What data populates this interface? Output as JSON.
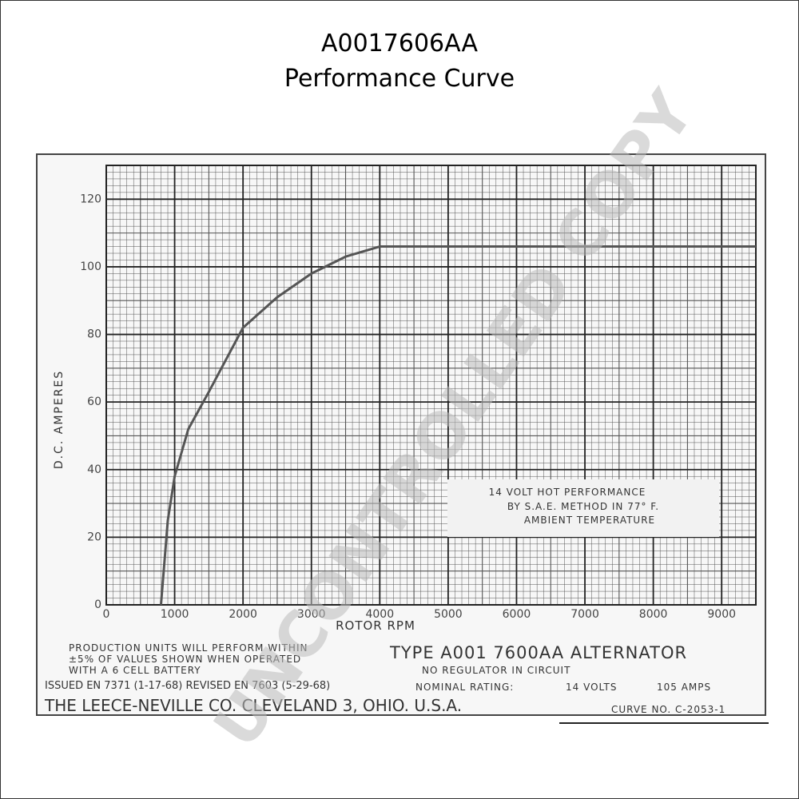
{
  "chart_data": {
    "type": "line",
    "title": "A0017606AA",
    "subtitle": "Performance Curve",
    "x_label": "ROTOR RPM",
    "y_label": "D.C. AMPERES",
    "x": [
      800,
      900,
      1000,
      1200,
      1500,
      2000,
      2500,
      3000,
      3500,
      4000,
      9500
    ],
    "values": [
      0,
      25,
      38,
      52,
      63,
      82,
      91,
      98,
      103,
      106,
      106
    ],
    "color": "#555555",
    "xlim": [
      0,
      9500
    ],
    "ylim": [
      0,
      130
    ],
    "xticks": [
      0,
      1000,
      2000,
      3000,
      4000,
      5000,
      6000,
      7000,
      8000,
      9000
    ],
    "yticks": [
      0,
      20,
      40,
      60,
      80,
      100,
      120
    ],
    "grid": true,
    "annotation": [
      "14 VOLT HOT PERFORMANCE",
      "BY S.A.E. METHOD IN 77° F.",
      "AMBIENT TEMPERATURE"
    ],
    "footer": {
      "production": [
        "PRODUCTION UNITS WILL PERFORM WITHIN",
        "±5% OF VALUES SHOWN WHEN OPERATED",
        "WITH A 6 CELL BATTERY"
      ],
      "issued": "ISSUED EN 7371 (1-17-68) REVISED EN 7603 (5-29-68)",
      "company": "THE LEECE-NEVILLE CO. CLEVELAND 3, OHIO. U.S.A.",
      "type": "TYPE A001 7600AA ALTERNATOR",
      "regulator": "NO REGULATOR IN CIRCUIT",
      "rating_label": "NOMINAL RATING:",
      "volts": "14 VOLTS",
      "amps": "105 AMPS",
      "curve_no": "CURVE NO. C-2053-1"
    },
    "watermark": "UNCONTROLLED COPY"
  }
}
